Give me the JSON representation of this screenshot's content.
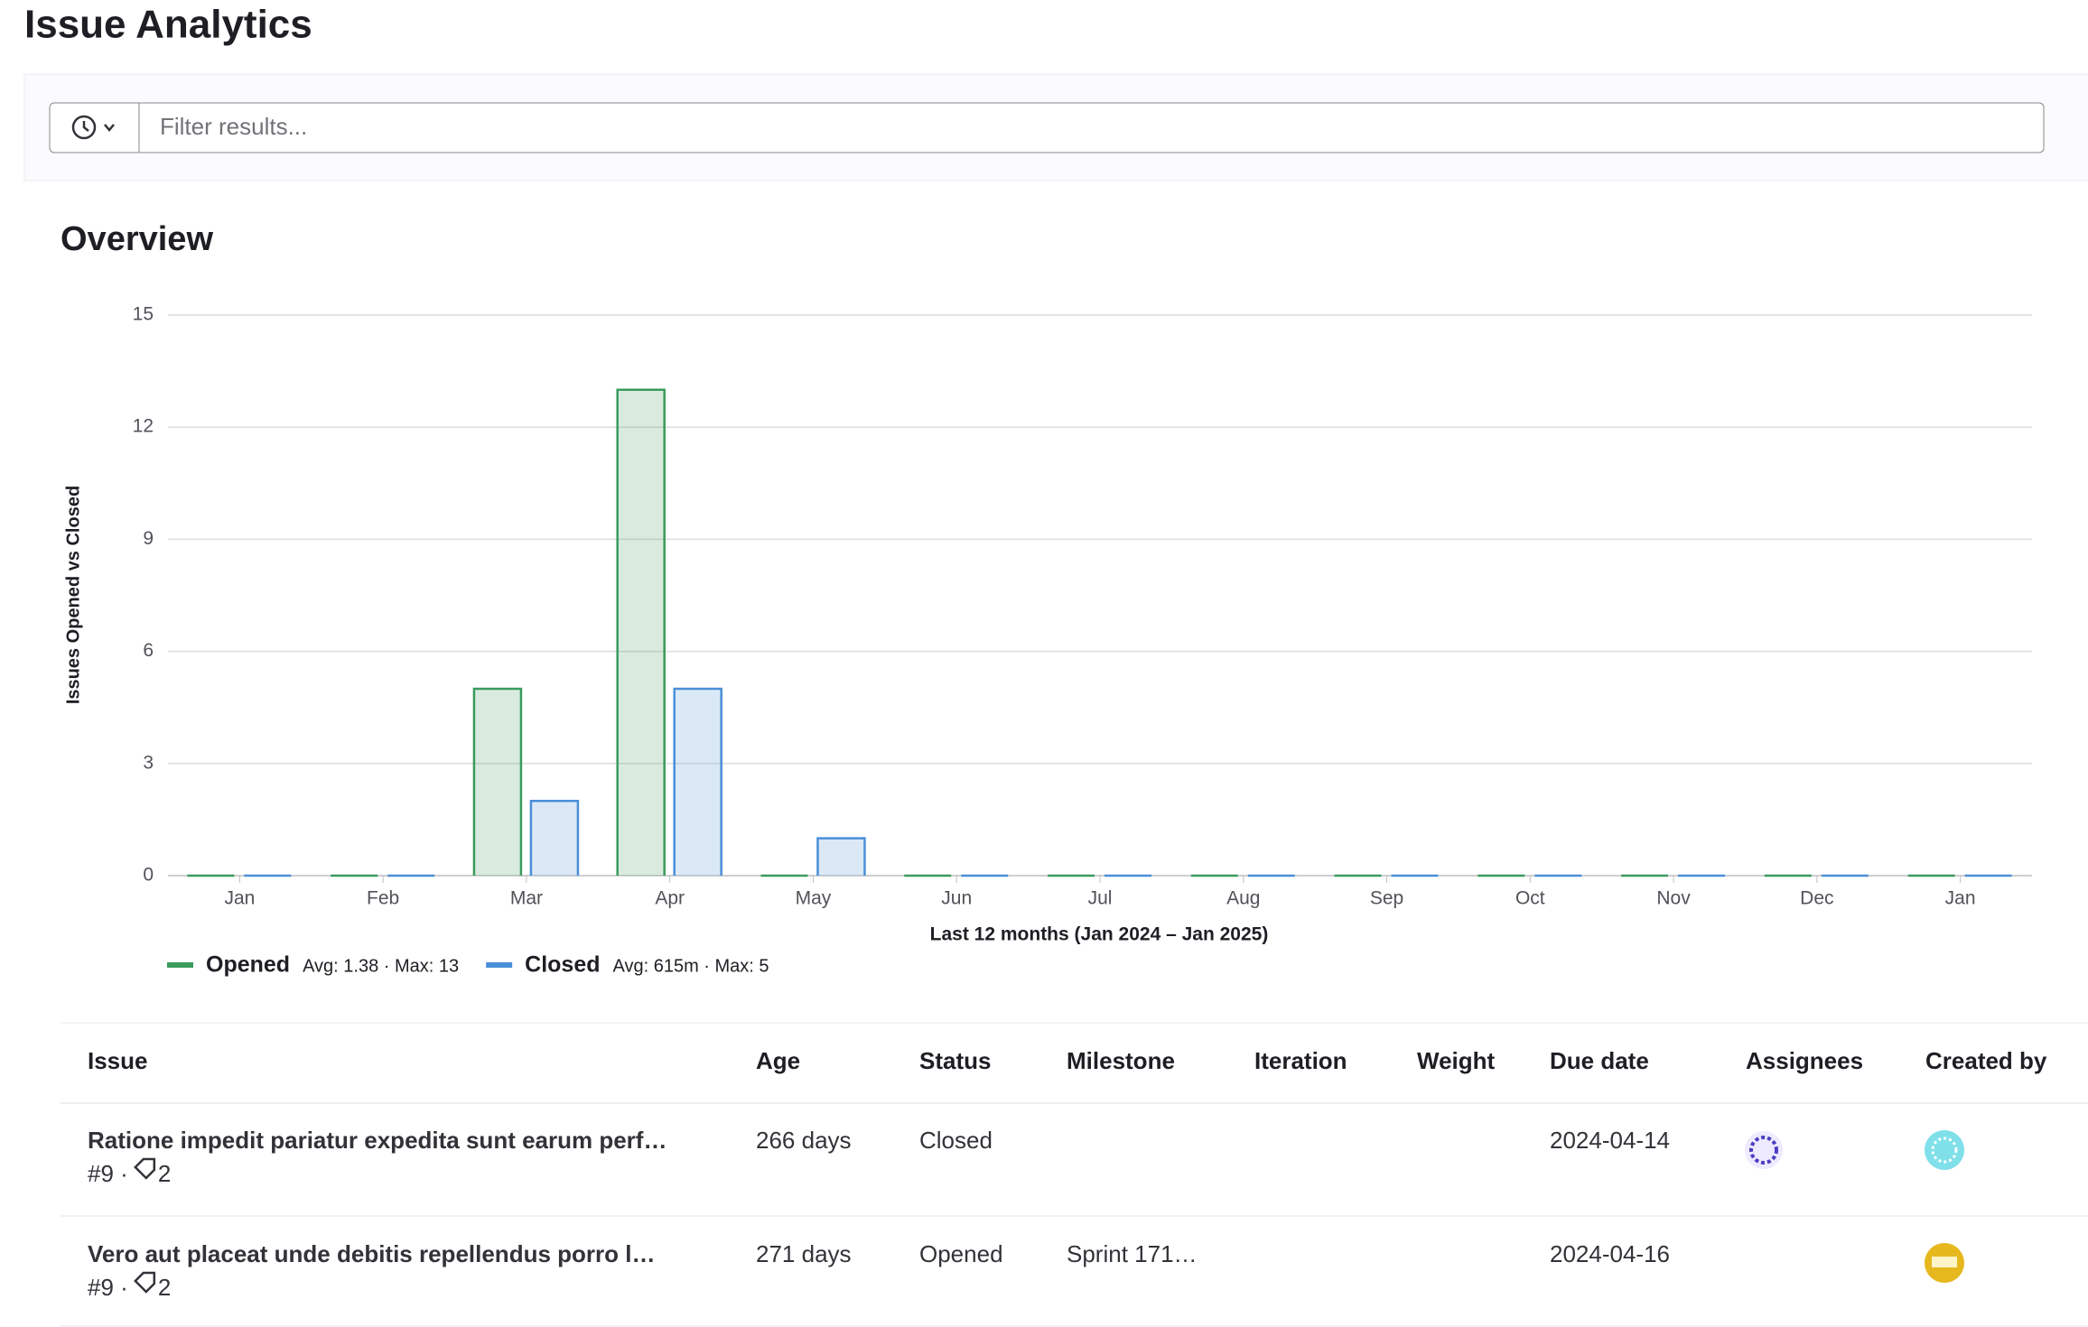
{
  "header": {
    "title": "Issue Analytics"
  },
  "filter": {
    "placeholder": "Filter results..."
  },
  "overview": {
    "title": "Overview"
  },
  "chart_data": {
    "type": "bar",
    "xlabel": "Last 12 months (Jan 2024 – Jan 2025)",
    "ylabel": "Issues Opened vs Closed",
    "categories": [
      "Jan",
      "Feb",
      "Mar",
      "Apr",
      "May",
      "Jun",
      "Jul",
      "Aug",
      "Sep",
      "Oct",
      "Nov",
      "Dec",
      "Jan"
    ],
    "series": [
      {
        "name": "Opened",
        "color": "#3a9b5c",
        "stats": "Avg: 1.38 · Max: 13",
        "values": [
          0,
          0,
          5,
          13,
          0,
          0,
          0,
          0,
          0,
          0,
          0,
          0,
          0
        ]
      },
      {
        "name": "Closed",
        "color": "#4a8fd8",
        "stats": "Avg: 615m · Max: 5",
        "values": [
          0,
          0,
          2,
          5,
          1,
          0,
          0,
          0,
          0,
          0,
          0,
          0,
          0
        ]
      }
    ],
    "ylim": [
      0,
      15
    ],
    "yticks": [
      0,
      3,
      6,
      9,
      12,
      15
    ],
    "grid": true,
    "legend": "bottom-left"
  },
  "table": {
    "columns": [
      "Issue",
      "Age",
      "Status",
      "Milestone",
      "Iteration",
      "Weight",
      "Due date",
      "Assignees",
      "Created by"
    ],
    "rows": [
      {
        "title": "Ratione impedit pariatur expedita sunt earum perf…",
        "ref": "#9 ·",
        "labels": "2",
        "age": "266 days",
        "status": "Closed",
        "due": "2024-04-14"
      },
      {
        "title": "Vero aut placeat unde debitis repellendus porro l…",
        "ref": "#9 ·",
        "labels": "2",
        "age": "271 days",
        "status": "Opened",
        "milestone": "Sprint 171…",
        "due": "2024-04-16"
      }
    ]
  }
}
